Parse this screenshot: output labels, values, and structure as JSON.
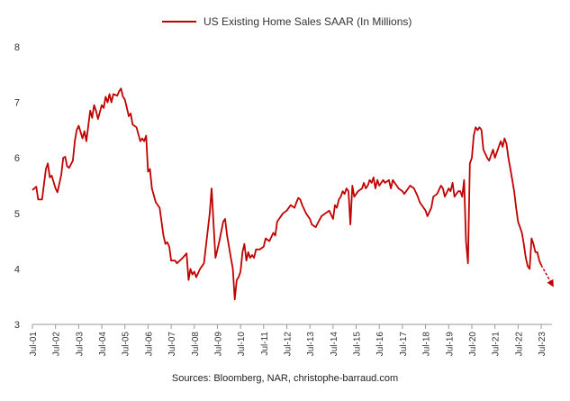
{
  "chart_data": {
    "type": "line",
    "title": "US Existing Home Sales SAAR (In Millions)",
    "xlabel": "",
    "ylabel": "",
    "ylim": [
      3,
      8
    ],
    "yticks": [
      "3",
      "4",
      "5",
      "6",
      "7",
      "8"
    ],
    "xticks": [
      "Jul-01",
      "Jul-02",
      "Jul-03",
      "Jul-04",
      "Jul-05",
      "Jul-06",
      "Jul-07",
      "Jul-08",
      "Jul-09",
      "Jul-10",
      "Jul-11",
      "Jul-12",
      "Jul-13",
      "Jul-14",
      "Jul-15",
      "Jul-16",
      "Jul-17",
      "Jul-18",
      "Jul-19",
      "Jul-20",
      "Jul-21",
      "Jul-22",
      "Jul-23"
    ],
    "grid": false,
    "legend": "top-center",
    "series": [
      {
        "name": "US Existing Home Sales SAAR (In Millions)",
        "color": "#c00000",
        "points": [
          [
            "Jul-01",
            5.42
          ],
          [
            "Sep-01",
            5.48
          ],
          [
            "Oct-01",
            5.25
          ],
          [
            "Dec-01",
            5.25
          ],
          [
            "Feb-02",
            5.8
          ],
          [
            "Mar-02",
            5.9
          ],
          [
            "Apr-02",
            5.65
          ],
          [
            "May-02",
            5.68
          ],
          [
            "Jul-02",
            5.45
          ],
          [
            "Aug-02",
            5.38
          ],
          [
            "Oct-02",
            5.7
          ],
          [
            "Nov-02",
            6.0
          ],
          [
            "Dec-02",
            6.02
          ],
          [
            "Jan-03",
            5.85
          ],
          [
            "Feb-03",
            5.82
          ],
          [
            "Apr-03",
            5.95
          ],
          [
            "May-03",
            6.3
          ],
          [
            "Jun-03",
            6.5
          ],
          [
            "Jul-03",
            6.58
          ],
          [
            "Sep-03",
            6.35
          ],
          [
            "Oct-03",
            6.48
          ],
          [
            "Nov-03",
            6.3
          ],
          [
            "Jan-04",
            6.85
          ],
          [
            "Feb-04",
            6.72
          ],
          [
            "Mar-04",
            6.95
          ],
          [
            "Apr-04",
            6.85
          ],
          [
            "May-04",
            6.7
          ],
          [
            "Jul-04",
            6.95
          ],
          [
            "Aug-04",
            6.9
          ],
          [
            "Sep-04",
            7.1
          ],
          [
            "Oct-04",
            7.0
          ],
          [
            "Nov-04",
            7.15
          ],
          [
            "Dec-04",
            7.0
          ],
          [
            "Jan-05",
            7.15
          ],
          [
            "Mar-05",
            7.12
          ],
          [
            "Apr-05",
            7.2
          ],
          [
            "May-05",
            7.25
          ],
          [
            "Jun-05",
            7.1
          ],
          [
            "Jul-05",
            7.05
          ],
          [
            "Aug-05",
            6.9
          ],
          [
            "Sep-05",
            6.75
          ],
          [
            "Oct-05",
            6.8
          ],
          [
            "Nov-05",
            6.6
          ],
          [
            "Jan-06",
            6.55
          ],
          [
            "Mar-06",
            6.3
          ],
          [
            "Apr-06",
            6.35
          ],
          [
            "May-06",
            6.3
          ],
          [
            "Jun-06",
            6.4
          ],
          [
            "Jul-06",
            5.75
          ],
          [
            "Aug-06",
            5.8
          ],
          [
            "Sep-06",
            5.45
          ],
          [
            "Nov-06",
            5.2
          ],
          [
            "Jan-07",
            5.1
          ],
          [
            "Mar-07",
            4.6
          ],
          [
            "Apr-07",
            4.45
          ],
          [
            "May-07",
            4.48
          ],
          [
            "Jun-07",
            4.4
          ],
          [
            "Jul-07",
            4.15
          ],
          [
            "Sep-07",
            4.15
          ],
          [
            "Oct-07",
            4.1
          ],
          [
            "Jan-08",
            4.2
          ],
          [
            "Mar-08",
            4.28
          ],
          [
            "Apr-08",
            3.8
          ],
          [
            "May-08",
            4.0
          ],
          [
            "Jun-08",
            3.9
          ],
          [
            "Jul-08",
            3.95
          ],
          [
            "Aug-08",
            3.85
          ],
          [
            "Oct-08",
            4.0
          ],
          [
            "Dec-08",
            4.1
          ],
          [
            "Mar-09",
            5.0
          ],
          [
            "Apr-09",
            5.45
          ],
          [
            "May-09",
            4.8
          ],
          [
            "Jun-09",
            4.2
          ],
          [
            "Jul-09",
            4.35
          ],
          [
            "Aug-09",
            4.5
          ],
          [
            "Oct-09",
            4.85
          ],
          [
            "Nov-09",
            4.9
          ],
          [
            "Dec-09",
            4.6
          ],
          [
            "Feb-10",
            4.2
          ],
          [
            "Mar-10",
            4.0
          ],
          [
            "Apr-10",
            3.45
          ],
          [
            "May-10",
            3.8
          ],
          [
            "Jun-10",
            3.85
          ],
          [
            "Jul-10",
            3.95
          ],
          [
            "Aug-10",
            4.3
          ],
          [
            "Sep-10",
            4.45
          ],
          [
            "Oct-10",
            4.15
          ],
          [
            "Nov-10",
            4.3
          ],
          [
            "Dec-10",
            4.2
          ],
          [
            "Jan-11",
            4.25
          ],
          [
            "Feb-11",
            4.2
          ],
          [
            "Mar-11",
            4.35
          ],
          [
            "May-11",
            4.35
          ],
          [
            "Jul-11",
            4.4
          ],
          [
            "Aug-11",
            4.55
          ],
          [
            "Oct-11",
            4.5
          ],
          [
            "Dec-11",
            4.65
          ],
          [
            "Jan-12",
            4.6
          ],
          [
            "Feb-12",
            4.85
          ],
          [
            "Mar-12",
            4.9
          ],
          [
            "May-12",
            5.0
          ],
          [
            "Jul-12",
            5.05
          ],
          [
            "Sep-12",
            5.15
          ],
          [
            "Nov-12",
            5.1
          ],
          [
            "Dec-12",
            5.2
          ],
          [
            "Jan-13",
            5.28
          ],
          [
            "Feb-13",
            5.25
          ],
          [
            "Mar-13",
            5.15
          ],
          [
            "May-13",
            5.0
          ],
          [
            "Jul-13",
            4.9
          ],
          [
            "Aug-13",
            4.8
          ],
          [
            "Oct-13",
            4.75
          ],
          [
            "Nov-13",
            4.82
          ],
          [
            "Jan-14",
            4.95
          ],
          [
            "Mar-14",
            5.0
          ],
          [
            "May-14",
            5.05
          ],
          [
            "Jul-14",
            4.9
          ],
          [
            "Aug-14",
            5.15
          ],
          [
            "Sep-14",
            5.1
          ],
          [
            "Oct-14",
            5.25
          ],
          [
            "Nov-14",
            5.3
          ],
          [
            "Dec-14",
            5.4
          ],
          [
            "Jan-15",
            5.35
          ],
          [
            "Feb-15",
            5.45
          ],
          [
            "Mar-15",
            5.4
          ],
          [
            "Apr-15",
            4.8
          ],
          [
            "May-15",
            5.5
          ],
          [
            "Jun-15",
            5.3
          ],
          [
            "Aug-15",
            5.4
          ],
          [
            "Oct-15",
            5.45
          ],
          [
            "Nov-15",
            5.55
          ],
          [
            "Dec-15",
            5.45
          ],
          [
            "Jan-16",
            5.5
          ],
          [
            "Feb-16",
            5.6
          ],
          [
            "Mar-16",
            5.55
          ],
          [
            "Apr-16",
            5.65
          ],
          [
            "May-16",
            5.45
          ],
          [
            "Jun-16",
            5.6
          ],
          [
            "Jul-16",
            5.5
          ],
          [
            "Aug-16",
            5.55
          ],
          [
            "Sep-16",
            5.6
          ],
          [
            "Oct-16",
            5.55
          ],
          [
            "Dec-16",
            5.6
          ],
          [
            "Jan-17",
            5.45
          ],
          [
            "Feb-17",
            5.6
          ],
          [
            "Mar-17",
            5.55
          ],
          [
            "Apr-17",
            5.5
          ],
          [
            "May-17",
            5.45
          ],
          [
            "Jul-17",
            5.4
          ],
          [
            "Aug-17",
            5.35
          ],
          [
            "Oct-17",
            5.45
          ],
          [
            "Nov-17",
            5.5
          ],
          [
            "Jan-18",
            5.45
          ],
          [
            "Mar-18",
            5.3
          ],
          [
            "Apr-18",
            5.2
          ],
          [
            "Jul-18",
            5.05
          ],
          [
            "Aug-18",
            4.95
          ],
          [
            "Oct-18",
            5.1
          ],
          [
            "Nov-18",
            5.3
          ],
          [
            "Jan-19",
            5.35
          ],
          [
            "Mar-19",
            5.5
          ],
          [
            "Apr-19",
            5.45
          ],
          [
            "May-19",
            5.3
          ],
          [
            "Jul-19",
            5.45
          ],
          [
            "Aug-19",
            5.4
          ],
          [
            "Sep-19",
            5.55
          ],
          [
            "Oct-19",
            5.3
          ],
          [
            "Nov-19",
            5.35
          ],
          [
            "Dec-19",
            5.4
          ],
          [
            "Jan-20",
            5.4
          ],
          [
            "Feb-20",
            5.3
          ],
          [
            "Mar-20",
            5.6
          ],
          [
            "Apr-20",
            4.5
          ],
          [
            "May-20",
            4.1
          ],
          [
            "Jun-20",
            5.9
          ],
          [
            "Jul-20",
            6.0
          ],
          [
            "Aug-20",
            6.4
          ],
          [
            "Sep-20",
            6.55
          ],
          [
            "Oct-20",
            6.5
          ],
          [
            "Nov-20",
            6.55
          ],
          [
            "Dec-20",
            6.5
          ],
          [
            "Jan-21",
            6.15
          ],
          [
            "Mar-21",
            6.0
          ],
          [
            "Apr-21",
            5.95
          ],
          [
            "Jun-21",
            6.15
          ],
          [
            "Jul-21",
            6.0
          ],
          [
            "Sep-21",
            6.2
          ],
          [
            "Oct-21",
            6.3
          ],
          [
            "Nov-21",
            6.2
          ],
          [
            "Dec-21",
            6.35
          ],
          [
            "Jan-22",
            6.25
          ],
          [
            "Feb-22",
            6.0
          ],
          [
            "Mar-22",
            5.8
          ],
          [
            "Apr-22",
            5.6
          ],
          [
            "May-22",
            5.4
          ],
          [
            "Jun-22",
            5.1
          ],
          [
            "Jul-22",
            4.85
          ],
          [
            "Aug-22",
            4.75
          ],
          [
            "Sep-22",
            4.65
          ],
          [
            "Oct-22",
            4.45
          ],
          [
            "Nov-22",
            4.2
          ],
          [
            "Dec-22",
            4.05
          ],
          [
            "Jan-23",
            4.0
          ],
          [
            "Feb-23",
            4.55
          ],
          [
            "Mar-23",
            4.45
          ],
          [
            "Apr-23",
            4.3
          ],
          [
            "May-23",
            4.3
          ],
          [
            "Jun-23",
            4.15
          ],
          [
            "Jul-23",
            4.07
          ]
        ]
      }
    ],
    "annotations": [
      {
        "type": "dashed-arrow",
        "from": [
          "Jul-23",
          4.07
        ],
        "to": [
          "Jan-24",
          3.7
        ],
        "color": "#c00000"
      }
    ],
    "source": "Sources: Bloomberg, NAR, christophe-barraud.com"
  }
}
